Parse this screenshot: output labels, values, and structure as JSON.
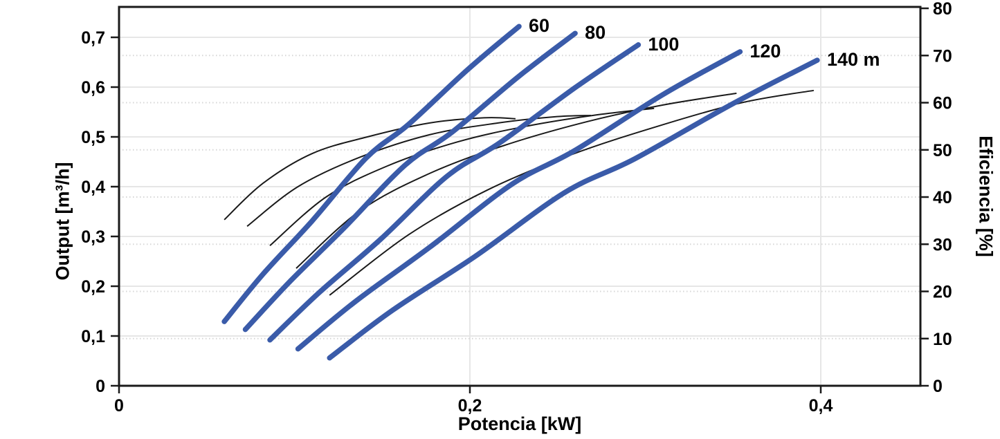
{
  "chart_data": {
    "type": "line",
    "title": "",
    "xlabel": "Potencia [kW]",
    "ylabel_left": "Output [m³/h]",
    "ylabel_right": "Eficiencia [%]",
    "xlim": [
      0,
      0.4568
    ],
    "ylim_left": [
      0,
      0.7611
    ],
    "ylim_right": [
      0,
      80.3
    ],
    "grid": "major solid horizontal+vertical, dotted horizontal at right-axis ticks",
    "legend_position": "curve-end labels",
    "x_ticks": [
      {
        "value": 0,
        "label": "0"
      },
      {
        "value": 0.2,
        "label": "0,2"
      },
      {
        "value": 0.4,
        "label": "0,4"
      }
    ],
    "y_ticks_left": [
      {
        "value": 0,
        "label": "0"
      },
      {
        "value": 0.1,
        "label": "0,1"
      },
      {
        "value": 0.2,
        "label": "0,2"
      },
      {
        "value": 0.3,
        "label": "0,3"
      },
      {
        "value": 0.4,
        "label": "0,4"
      },
      {
        "value": 0.5,
        "label": "0,5"
      },
      {
        "value": 0.6,
        "label": "0,6"
      },
      {
        "value": 0.7,
        "label": "0,7"
      }
    ],
    "y_ticks_right": [
      {
        "value": 0,
        "label": "0"
      },
      {
        "value": 10,
        "label": "10"
      },
      {
        "value": 20,
        "label": "20"
      },
      {
        "value": 30,
        "label": "30"
      },
      {
        "value": 40,
        "label": "40"
      },
      {
        "value": 50,
        "label": "50"
      },
      {
        "value": 60,
        "label": "60"
      },
      {
        "value": 70,
        "label": "70"
      },
      {
        "value": 80,
        "label": "80"
      }
    ],
    "colors": {
      "pump_curve": "#3A5BA9",
      "efficiency_curve": "#1A1A1A",
      "grid_solid": "#E6E6E6",
      "grid_dotted": "#D6D6D6",
      "axis": "#1A1A1A"
    },
    "series": [
      {
        "name": "head-60m",
        "label": "60",
        "axis": "left",
        "head_m": 60,
        "points": [
          [
            0.06,
            0.129
          ],
          [
            0.082,
            0.224
          ],
          [
            0.11,
            0.331
          ],
          [
            0.141,
            0.458
          ],
          [
            0.165,
            0.525
          ],
          [
            0.199,
            0.636
          ],
          [
            0.228,
            0.722
          ]
        ]
      },
      {
        "name": "head-80m",
        "label": "80",
        "axis": "left",
        "head_m": 80,
        "points": [
          [
            0.072,
            0.113
          ],
          [
            0.097,
            0.208
          ],
          [
            0.128,
            0.316
          ],
          [
            0.163,
            0.443
          ],
          [
            0.19,
            0.51
          ],
          [
            0.228,
            0.622
          ],
          [
            0.26,
            0.708
          ]
        ]
      },
      {
        "name": "head-100m",
        "label": "100",
        "axis": "left",
        "head_m": 100,
        "points": [
          [
            0.086,
            0.092
          ],
          [
            0.114,
            0.187
          ],
          [
            0.149,
            0.294
          ],
          [
            0.187,
            0.421
          ],
          [
            0.217,
            0.488
          ],
          [
            0.26,
            0.599
          ],
          [
            0.296,
            0.685
          ]
        ]
      },
      {
        "name": "head-120m",
        "label": "120",
        "axis": "left",
        "head_m": 120,
        "points": [
          [
            0.102,
            0.074
          ],
          [
            0.135,
            0.17
          ],
          [
            0.177,
            0.278
          ],
          [
            0.224,
            0.405
          ],
          [
            0.26,
            0.473
          ],
          [
            0.31,
            0.585
          ],
          [
            0.354,
            0.671
          ]
        ]
      },
      {
        "name": "head-140m",
        "label": "140 m",
        "axis": "left",
        "head_m": 140,
        "points": [
          [
            0.12,
            0.056
          ],
          [
            0.156,
            0.152
          ],
          [
            0.203,
            0.26
          ],
          [
            0.254,
            0.388
          ],
          [
            0.294,
            0.456
          ],
          [
            0.35,
            0.567
          ],
          [
            0.398,
            0.654
          ]
        ]
      }
    ],
    "efficiency_series": [
      {
        "name": "efficiency-60m",
        "axis": "right",
        "head_m": 60,
        "points": [
          [
            0.06,
            35.2
          ],
          [
            0.082,
            42.9
          ],
          [
            0.11,
            49.2
          ],
          [
            0.141,
            52.7
          ],
          [
            0.177,
            55.7
          ],
          [
            0.208,
            56.8
          ],
          [
            0.226,
            56.6
          ]
        ]
      },
      {
        "name": "efficiency-80m",
        "axis": "right",
        "head_m": 80,
        "points": [
          [
            0.073,
            33.8
          ],
          [
            0.102,
            42.2
          ],
          [
            0.137,
            48.4
          ],
          [
            0.177,
            53.2
          ],
          [
            0.216,
            55.7
          ],
          [
            0.248,
            57.0
          ],
          [
            0.269,
            57.3
          ]
        ]
      },
      {
        "name": "efficiency-100m",
        "axis": "right",
        "head_m": 100,
        "points": [
          [
            0.086,
            29.7
          ],
          [
            0.118,
            40.0
          ],
          [
            0.153,
            46.6
          ],
          [
            0.193,
            51.7
          ],
          [
            0.232,
            55.0
          ],
          [
            0.27,
            57.3
          ],
          [
            0.305,
            58.8
          ]
        ]
      },
      {
        "name": "efficiency-120m",
        "axis": "right",
        "head_m": 120,
        "points": [
          [
            0.101,
            24.9
          ],
          [
            0.137,
            37.0
          ],
          [
            0.177,
            45.0
          ],
          [
            0.22,
            51.0
          ],
          [
            0.267,
            56.0
          ],
          [
            0.31,
            59.5
          ],
          [
            0.352,
            62.0
          ]
        ]
      },
      {
        "name": "efficiency-140m",
        "axis": "right",
        "head_m": 140,
        "points": [
          [
            0.12,
            19.2
          ],
          [
            0.165,
            32.0
          ],
          [
            0.21,
            41.5
          ],
          [
            0.258,
            49.0
          ],
          [
            0.307,
            55.0
          ],
          [
            0.355,
            60.0
          ],
          [
            0.396,
            62.6
          ]
        ]
      }
    ]
  }
}
